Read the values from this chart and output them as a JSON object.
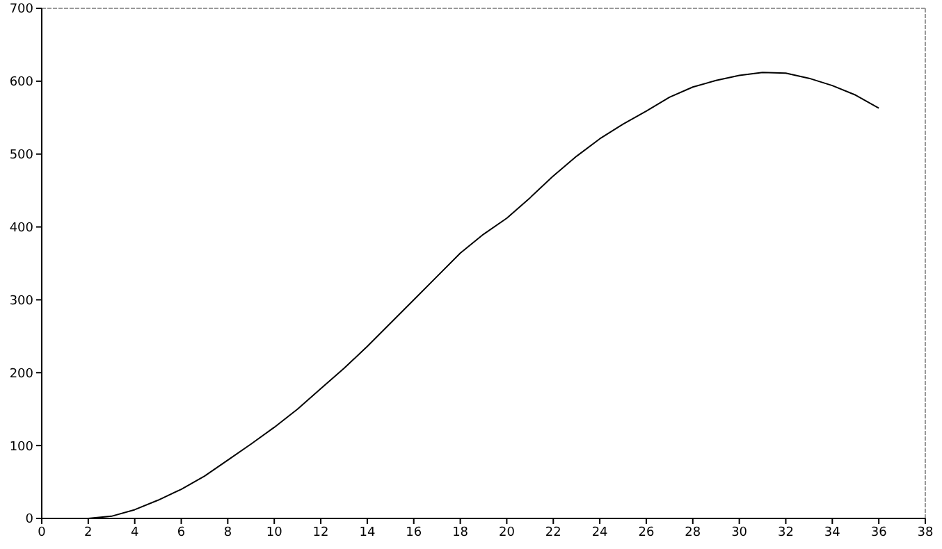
{
  "chart_data": {
    "type": "line",
    "x": [
      2,
      3,
      4,
      5,
      6,
      7,
      8,
      9,
      10,
      11,
      12,
      13,
      14,
      15,
      16,
      17,
      18,
      19,
      20,
      21,
      22,
      23,
      24,
      25,
      26,
      27,
      28,
      29,
      30,
      31,
      32,
      33,
      34,
      35,
      36
    ],
    "series": [
      {
        "color": "#000000",
        "values": [
          0,
          3,
          12,
          25,
          40,
          58,
          80,
          102,
          125,
          150,
          178,
          206,
          236,
          268,
          300,
          332,
          364,
          390,
          412,
          440,
          470,
          497,
          521,
          541,
          559,
          578,
          592,
          601,
          608,
          612,
          611,
          604,
          594,
          581,
          563
        ]
      }
    ],
    "xlim": [
      0,
      38
    ],
    "xticks": [
      0,
      2,
      4,
      6,
      8,
      10,
      12,
      14,
      16,
      18,
      20,
      22,
      24,
      26,
      28,
      30,
      32,
      34,
      36,
      38
    ],
    "ylim": [
      0,
      700
    ],
    "yticks": [
      0,
      100,
      200,
      300,
      400,
      500,
      600,
      700
    ],
    "grid": false,
    "legend": false,
    "marker": "none",
    "line_style": "solid"
  }
}
